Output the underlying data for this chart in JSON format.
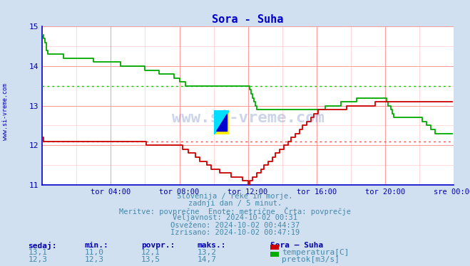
{
  "title": "Sora - Suha",
  "bg_color": "#d0e0f0",
  "plot_bg_color": "#ffffff",
  "grid_color_major": "#ff9999",
  "grid_color_minor": "#ffcccc",
  "xlim": [
    0,
    288
  ],
  "ylim": [
    11,
    15
  ],
  "yticks": [
    11,
    12,
    13,
    14,
    15
  ],
  "xtick_labels": [
    "tor 04:00",
    "tor 08:00",
    "tor 12:00",
    "tor 16:00",
    "tor 20:00",
    "sre 00:00"
  ],
  "xtick_positions": [
    48,
    96,
    144,
    192,
    240,
    288
  ],
  "temp_avg_line": 12.1,
  "flow_avg_line": 13.5,
  "temp_color": "#cc0000",
  "flow_color": "#00aa00",
  "temp_avg_color": "#ff4444",
  "flow_avg_color": "#00cc00",
  "watermark": "www.si-vreme.com",
  "subtitle1": "Slovenija / reke in morje.",
  "subtitle2": "zadnji dan / 5 minut.",
  "subtitle3": "Meritve: povprečne  Enote: metrične  Črta: povprečje",
  "subtitle4": "Veljavnost: 2024-10-02 00:31",
  "subtitle5": "Osveženo: 2024-10-02 00:44:37",
  "subtitle6": "Izrisano: 2024-10-02 00:47:19",
  "table_headers": [
    "sedaj:",
    "min.:",
    "povpr.:",
    "maks.:"
  ],
  "table_row1": [
    "13,1",
    "11,0",
    "12,1",
    "13,2"
  ],
  "table_row2": [
    "12,3",
    "12,3",
    "13,5",
    "14,7"
  ],
  "legend_title": "Sora – Suha",
  "legend_items": [
    "temperatura[C]",
    "pretok[m3/s]"
  ],
  "legend_colors": [
    "#cc0000",
    "#00aa00"
  ],
  "axis_color": "#0000cc",
  "axis_label_color": "#0000aa",
  "title_color": "#0000cc",
  "text_color": "#4488aa",
  "table_header_color": "#0000aa"
}
